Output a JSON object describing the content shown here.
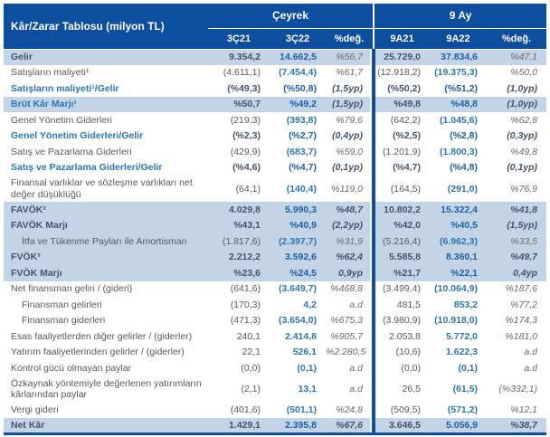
{
  "table": {
    "title": "Kâr/Zarar Tablosu (milyon TL)",
    "groups": [
      {
        "label": "Çeyrek"
      },
      {
        "label": "9 Ay"
      }
    ],
    "columns": [
      "3Ç21",
      "3Ç22",
      "%değ.",
      "9A21",
      "9A22",
      "%değ."
    ],
    "colors": {
      "header_bg": "#0d4e9e",
      "highlight_row_bg": "#c3d4e7",
      "dark_text": "#44546a",
      "blue_text": "#2e75b6",
      "gray_text": "#595959"
    },
    "rows": [
      {
        "label": "Gelir",
        "type": "total",
        "hl": true,
        "pct_light": true,
        "values": [
          "9.354,2",
          "14.662,5",
          "%56,7",
          "25.729,0",
          "37.834,6",
          "%47,1"
        ]
      },
      {
        "label": "Satışların maliyeti¹",
        "type": "plain",
        "values": [
          "(4.611,1)",
          "(7.454,4)",
          "%61,7",
          "(12.918,2)",
          "(19.375,3)",
          "%50,0"
        ]
      },
      {
        "label": "Satışların maliyeti¹/Gelir",
        "type": "ratio",
        "values": [
          "(%49,3)",
          "(%50,8)",
          "(1,5yp)",
          "(%50,2)",
          "(%51,2)",
          "(1,0yp)"
        ]
      },
      {
        "label": "Brüt Kâr Marjı¹",
        "type": "ratio",
        "hl": true,
        "values": [
          "%50,7",
          "%49,2",
          "(1,5yp)",
          "%49,8",
          "%48,8",
          "(1,0yp)"
        ]
      },
      {
        "label": "Genel Yönetim Giderleri",
        "type": "plain",
        "values": [
          "(219,3)",
          "(393,8)",
          "%79,6",
          "(642,2)",
          "(1.045,6)",
          "%62,8"
        ]
      },
      {
        "label": "Genel Yönetim Giderleri/Gelir",
        "type": "ratio",
        "values": [
          "(%2,3)",
          "(%2,7)",
          "(0,4yp)",
          "(%2,5)",
          "(%2,8)",
          "(0,3yp)"
        ]
      },
      {
        "label": "Satış ve Pazarlama Giderleri",
        "type": "plain",
        "values": [
          "(429,9)",
          "(683,7)",
          "%59,0",
          "(1.201,9)",
          "(1.800,3)",
          "%49,8"
        ]
      },
      {
        "label": "Satış ve Pazarlama Giderleri/Gelir",
        "type": "ratio",
        "values": [
          "(%4,6)",
          "(%4,7)",
          "(0,1yp)",
          "(%4,7)",
          "(%4,8)",
          "(0,1yp)"
        ]
      },
      {
        "label": "Finansal varlıklar ve sözleşme varlıkları net değer düşüklüğü",
        "type": "plain",
        "wrap": true,
        "values": [
          "(64,1)",
          "(140,4)",
          "%119,0",
          "(164,5)",
          "(291,0)",
          "%76,9"
        ]
      },
      {
        "label": "FAVÖK²",
        "type": "total",
        "hl": true,
        "values": [
          "4.029,8",
          "5.990,3",
          "%48,7",
          "10.802,2",
          "15.322,4",
          "%41,8"
        ]
      },
      {
        "label": "FAVÖK Marjı",
        "type": "total",
        "hl": true,
        "values": [
          "%43,1",
          "%40,9",
          "(2,2yp)",
          "%42,0",
          "%40,5",
          "(1,5yp)"
        ]
      },
      {
        "label": "İtfa ve Tükenme Payları ile Amortisman",
        "type": "plain",
        "hl": true,
        "indent": true,
        "values": [
          "(1.817,6)",
          "(2.397,7)",
          "%31,9",
          "(5.216,4)",
          "(6.962,3)",
          "%33,5"
        ]
      },
      {
        "label": "FVÖK³",
        "type": "total",
        "hl": true,
        "values": [
          "2.212,2",
          "3.592,6",
          "%62,4",
          "5.585,8",
          "8.360,1",
          "%49,7"
        ]
      },
      {
        "label": "FVÖK Marjı",
        "type": "total",
        "hl": true,
        "values": [
          "%23,6",
          "%24,5",
          "0,9yp",
          "%21,7",
          "%22,1",
          "0,4yp"
        ]
      },
      {
        "label": "Net finansman geliri / (gideri)",
        "type": "plain",
        "values": [
          "(641,6)",
          "(3.649,7)",
          "%468,8",
          "(3.499,4)",
          "(10.064,9)",
          "%187,6"
        ]
      },
      {
        "label": "Finansman gelirleri",
        "type": "plain",
        "indent": true,
        "values": [
          "(170,3)",
          "4,2",
          "a.d",
          "481,5",
          "853,2",
          "%77,2"
        ]
      },
      {
        "label": "Finansman giderleri",
        "type": "plain",
        "indent": true,
        "values": [
          "(471,3)",
          "(3.654,0)",
          "%675,3",
          "(3.980,9)",
          "(10.918,0)",
          "%174,3"
        ]
      },
      {
        "label": "Esas faaliyetlerden diğer gelirler / (giderler)",
        "type": "plain",
        "values": [
          "240,1",
          "2.414,8",
          "%905,7",
          "2.053,8",
          "5.772,0",
          "%181,0"
        ]
      },
      {
        "label": "Yatırım faaliyetlerinden gelirler / (giderler)",
        "type": "plain",
        "values": [
          "22,1",
          "526,1",
          "%2.280,5",
          "(10,6)",
          "1.622,3",
          "a.d"
        ]
      },
      {
        "label": "Kontrol gücü olmayan paylar",
        "type": "plain",
        "values": [
          "(0,0)",
          "(0,1)",
          "a.d",
          "(0,0)",
          "(0,1)",
          "a.d"
        ]
      },
      {
        "label": "Özkaynak yöntemiyle değerlenen yatırımların kârlarından paylar",
        "type": "plain",
        "wrap": true,
        "values": [
          "(2,1)",
          "13,1",
          "a.d",
          "26,5",
          "(61,5)",
          "(%332,1)"
        ]
      },
      {
        "label": "Vergi gideri",
        "type": "plain",
        "values": [
          "(401,6)",
          "(501,1)",
          "%24,8",
          "(509,5)",
          "(571,2)",
          "%12,1"
        ]
      },
      {
        "label": "Net Kâr",
        "type": "total",
        "hl": true,
        "values": [
          "1.429,1",
          "2.395,8",
          "%67,6",
          "3.646,5",
          "5.056,9",
          "%38,7"
        ]
      }
    ]
  }
}
